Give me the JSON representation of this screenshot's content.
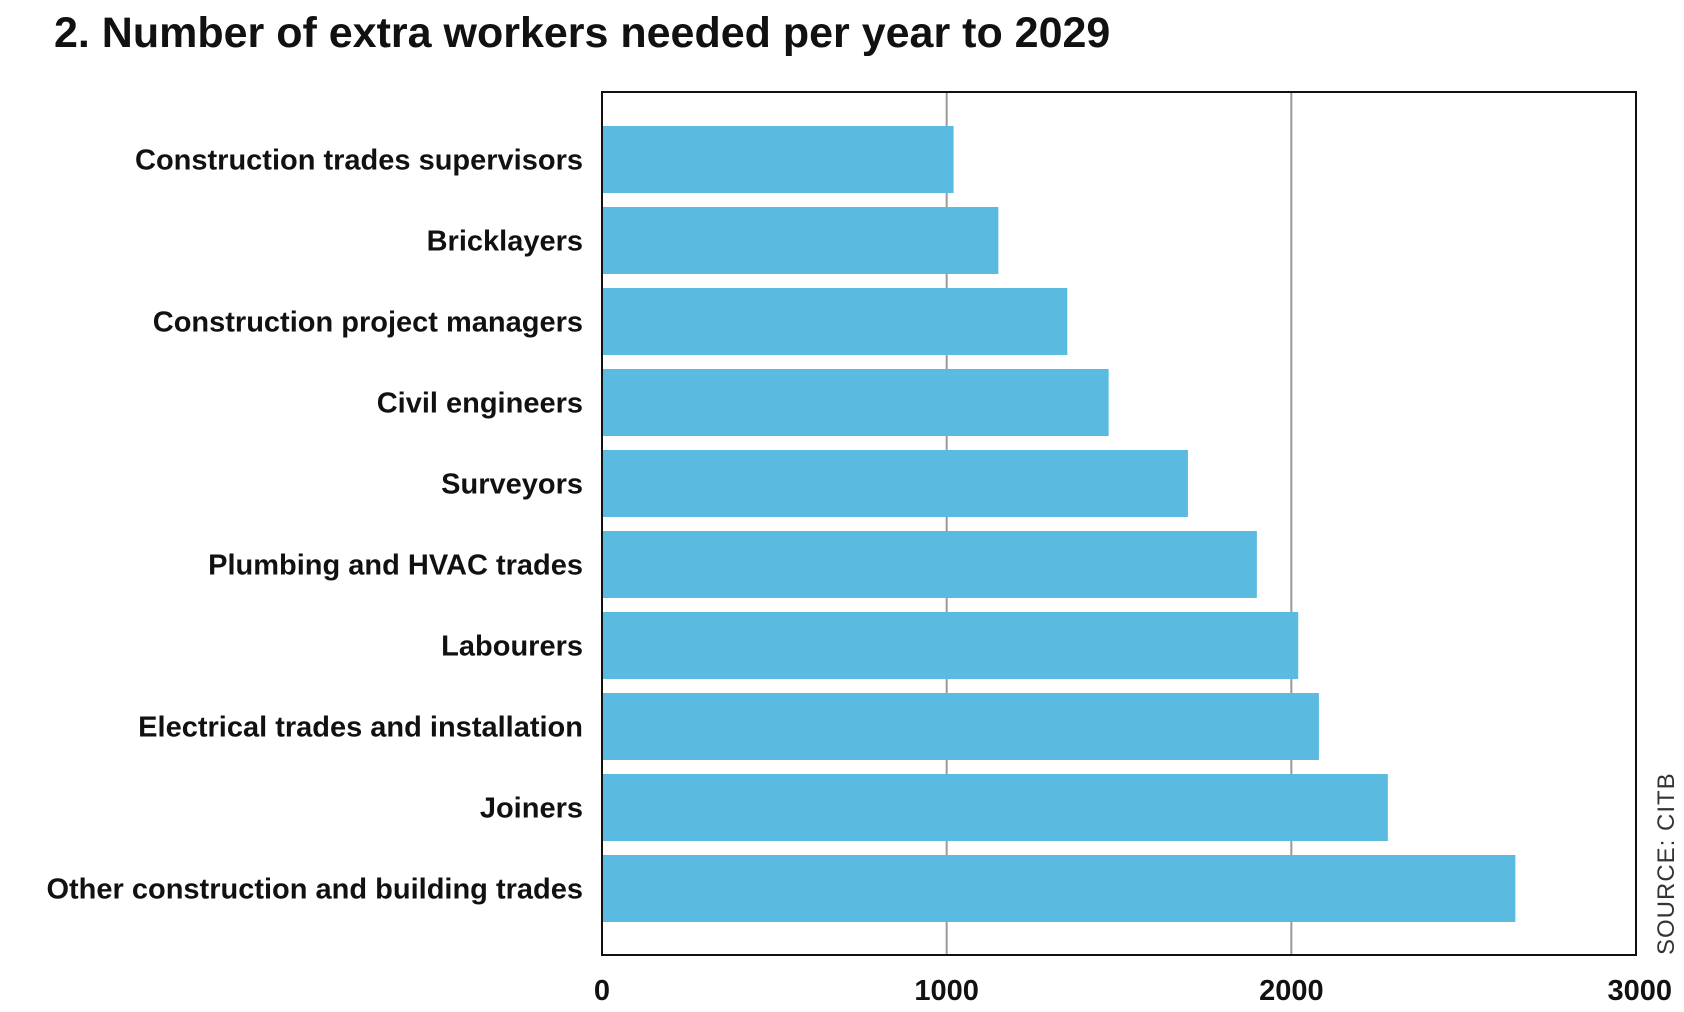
{
  "chart_data": {
    "type": "bar",
    "orientation": "horizontal",
    "title": "2. Number of extra workers needed per year to 2029",
    "categories": [
      "Construction trades supervisors",
      "Bricklayers",
      "Construction project managers",
      "Civil engineers",
      "Surveyors",
      "Plumbing and HVAC trades",
      "Labourers",
      "Electrical trades and installation",
      "Joiners",
      "Other construction and building trades"
    ],
    "values": [
      1020,
      1150,
      1350,
      1470,
      1700,
      1900,
      2020,
      2080,
      2280,
      2650
    ],
    "xlim": [
      0,
      3000
    ],
    "xticks": [
      0,
      1000,
      2000,
      3000
    ],
    "xtick_labels": [
      "0",
      "1000",
      "2000",
      "3000"
    ],
    "xlabel": "",
    "ylabel": "",
    "grid": "vertical",
    "bar_color": "#5bbadf",
    "grid_color": "#999999",
    "source": "SOURCE: CITB"
  }
}
